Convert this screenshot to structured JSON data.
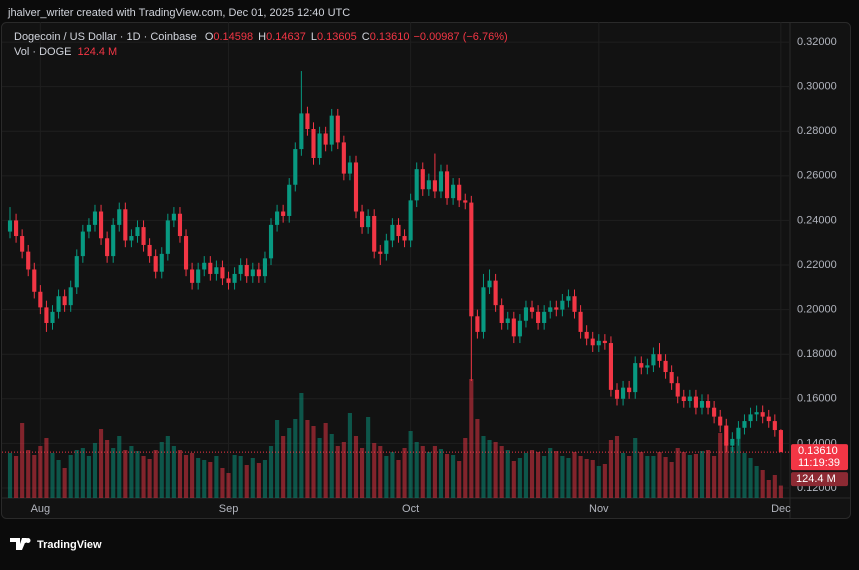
{
  "header": {
    "created_by": "jhalver_writer created with TradingView.com, Dec 01, 2025 12:40 UTC",
    "brand": "TradingView"
  },
  "chart_data": {
    "type": "candlestick",
    "title": "Dogecoin / US Dollar · 1D · Coinbase",
    "ohlc_legend": [
      {
        "key": "O",
        "label": "0.14598"
      },
      {
        "key": "H",
        "label": "0.14637"
      },
      {
        "key": "L",
        "label": "0.13605"
      },
      {
        "key": "C",
        "label": "0.13610"
      }
    ],
    "change": "−0.00987 (−6.76%)",
    "volume_title": "Vol · DOGE",
    "volume_label": "124.4 M",
    "last_price_label": "0.13610",
    "countdown": "11:19:39",
    "up_color": "#089981",
    "down_color": "#f23645",
    "grid": true,
    "open": [
      0.235,
      0.24,
      0.233,
      0.226,
      0.218,
      0.208,
      0.201,
      0.194,
      0.199,
      0.206,
      0.202,
      0.21,
      0.224,
      0.235,
      0.238,
      0.244,
      0.232,
      0.224,
      0.238,
      0.245,
      0.231,
      0.233,
      0.237,
      0.229,
      0.224,
      0.217,
      0.225,
      0.24,
      0.243,
      0.233,
      0.218,
      0.212,
      0.218,
      0.221,
      0.216,
      0.219,
      0.214,
      0.212,
      0.216,
      0.22,
      0.215,
      0.218,
      0.215,
      0.223,
      0.238,
      0.244,
      0.242,
      0.256,
      0.272,
      0.288,
      0.281,
      0.268,
      0.279,
      0.274,
      0.287,
      0.275,
      0.261,
      0.266,
      0.244,
      0.237,
      0.242,
      0.226,
      0.225,
      0.231,
      0.238,
      0.233,
      0.231,
      0.249,
      0.263,
      0.254,
      0.258,
      0.253,
      0.262,
      0.25,
      0.256,
      0.249,
      0.248,
      0.197,
      0.19,
      0.21,
      0.213,
      0.202,
      0.194,
      0.196,
      0.188,
      0.195,
      0.201,
      0.199,
      0.194,
      0.199,
      0.201,
      0.2,
      0.204,
      0.206,
      0.199,
      0.19,
      0.187,
      0.184,
      0.186,
      0.185,
      0.164,
      0.16,
      0.165,
      0.163,
      0.176,
      0.174,
      0.175,
      0.18,
      0.177,
      0.172,
      0.167,
      0.161,
      0.159,
      0.161,
      0.156,
      0.159,
      0.156,
      0.152,
      0.148,
      0.139,
      0.142,
      0.147,
      0.15,
      0.153,
      0.154,
      0.152,
      0.15,
      0.14598
    ],
    "high": [
      0.246,
      0.243,
      0.236,
      0.229,
      0.221,
      0.211,
      0.204,
      0.202,
      0.209,
      0.209,
      0.213,
      0.227,
      0.238,
      0.241,
      0.247,
      0.247,
      0.235,
      0.241,
      0.248,
      0.248,
      0.236,
      0.24,
      0.24,
      0.232,
      0.227,
      0.228,
      0.243,
      0.246,
      0.246,
      0.236,
      0.221,
      0.221,
      0.224,
      0.224,
      0.222,
      0.222,
      0.217,
      0.219,
      0.223,
      0.223,
      0.221,
      0.221,
      0.226,
      0.241,
      0.247,
      0.247,
      0.259,
      0.275,
      0.307,
      0.291,
      0.284,
      0.282,
      0.282,
      0.29,
      0.29,
      0.278,
      0.269,
      0.269,
      0.247,
      0.245,
      0.245,
      0.229,
      0.234,
      0.241,
      0.241,
      0.236,
      0.252,
      0.266,
      0.266,
      0.261,
      0.27,
      0.265,
      0.265,
      0.259,
      0.259,
      0.252,
      0.251,
      0.2,
      0.216,
      0.218,
      0.216,
      0.205,
      0.199,
      0.199,
      0.198,
      0.204,
      0.204,
      0.202,
      0.202,
      0.204,
      0.204,
      0.207,
      0.209,
      0.209,
      0.202,
      0.193,
      0.19,
      0.189,
      0.189,
      0.188,
      0.167,
      0.168,
      0.168,
      0.179,
      0.179,
      0.178,
      0.183,
      0.185,
      0.18,
      0.175,
      0.17,
      0.164,
      0.164,
      0.164,
      0.162,
      0.162,
      0.159,
      0.155,
      0.151,
      0.145,
      0.15,
      0.153,
      0.156,
      0.157,
      0.157,
      0.155,
      0.153,
      0.14637
    ],
    "low": [
      0.232,
      0.23,
      0.223,
      0.215,
      0.205,
      0.198,
      0.19,
      0.191,
      0.196,
      0.199,
      0.199,
      0.207,
      0.221,
      0.232,
      0.235,
      0.229,
      0.221,
      0.221,
      0.235,
      0.228,
      0.228,
      0.23,
      0.226,
      0.221,
      0.214,
      0.214,
      0.222,
      0.237,
      0.23,
      0.215,
      0.209,
      0.209,
      0.215,
      0.213,
      0.213,
      0.211,
      0.209,
      0.209,
      0.213,
      0.212,
      0.212,
      0.212,
      0.212,
      0.22,
      0.235,
      0.239,
      0.239,
      0.253,
      0.269,
      0.278,
      0.265,
      0.265,
      0.271,
      0.271,
      0.272,
      0.258,
      0.258,
      0.241,
      0.234,
      0.234,
      0.223,
      0.22,
      0.222,
      0.228,
      0.23,
      0.228,
      0.228,
      0.246,
      0.251,
      0.251,
      0.25,
      0.25,
      0.247,
      0.247,
      0.246,
      0.245,
      0.168,
      0.187,
      0.187,
      0.207,
      0.199,
      0.191,
      0.191,
      0.185,
      0.185,
      0.192,
      0.196,
      0.191,
      0.191,
      0.196,
      0.197,
      0.197,
      0.201,
      0.196,
      0.187,
      0.184,
      0.181,
      0.181,
      0.182,
      0.161,
      0.157,
      0.157,
      0.16,
      0.16,
      0.171,
      0.171,
      0.172,
      0.174,
      0.169,
      0.164,
      0.158,
      0.156,
      0.156,
      0.153,
      0.153,
      0.153,
      0.149,
      0.145,
      0.136,
      0.136,
      0.139,
      0.144,
      0.147,
      0.15,
      0.149,
      0.147,
      0.143,
      0.13605
    ],
    "close": [
      0.24,
      0.233,
      0.226,
      0.218,
      0.208,
      0.201,
      0.194,
      0.199,
      0.206,
      0.202,
      0.21,
      0.224,
      0.235,
      0.238,
      0.244,
      0.232,
      0.224,
      0.238,
      0.245,
      0.231,
      0.233,
      0.237,
      0.229,
      0.224,
      0.217,
      0.225,
      0.24,
      0.243,
      0.233,
      0.218,
      0.212,
      0.218,
      0.221,
      0.216,
      0.219,
      0.214,
      0.212,
      0.216,
      0.22,
      0.215,
      0.218,
      0.215,
      0.223,
      0.238,
      0.244,
      0.242,
      0.256,
      0.272,
      0.288,
      0.281,
      0.268,
      0.279,
      0.274,
      0.287,
      0.275,
      0.261,
      0.266,
      0.244,
      0.237,
      0.242,
      0.226,
      0.225,
      0.231,
      0.238,
      0.233,
      0.231,
      0.249,
      0.263,
      0.254,
      0.258,
      0.253,
      0.262,
      0.25,
      0.256,
      0.249,
      0.248,
      0.197,
      0.19,
      0.21,
      0.213,
      0.202,
      0.194,
      0.196,
      0.188,
      0.195,
      0.201,
      0.199,
      0.194,
      0.199,
      0.201,
      0.2,
      0.204,
      0.206,
      0.199,
      0.19,
      0.187,
      0.184,
      0.186,
      0.185,
      0.164,
      0.16,
      0.165,
      0.163,
      0.176,
      0.174,
      0.175,
      0.18,
      0.177,
      0.172,
      0.167,
      0.161,
      0.159,
      0.161,
      0.156,
      0.159,
      0.156,
      0.152,
      0.148,
      0.139,
      0.142,
      0.147,
      0.15,
      0.153,
      0.154,
      0.152,
      0.15,
      0.14598,
      0.1361
    ],
    "volume": [
      450,
      420,
      750,
      480,
      430,
      520,
      600,
      450,
      380,
      300,
      430,
      480,
      500,
      420,
      550,
      690,
      580,
      500,
      620,
      480,
      520,
      470,
      420,
      390,
      480,
      560,
      620,
      520,
      480,
      430,
      450,
      400,
      380,
      360,
      420,
      300,
      250,
      430,
      420,
      330,
      400,
      350,
      380,
      520,
      780,
      620,
      700,
      790,
      1050,
      780,
      720,
      600,
      750,
      640,
      520,
      560,
      850,
      620,
      500,
      810,
      550,
      520,
      420,
      460,
      380,
      500,
      670,
      560,
      520,
      460,
      520,
      490,
      440,
      430,
      370,
      600,
      1190,
      790,
      620,
      580,
      560,
      520,
      480,
      370,
      400,
      450,
      480,
      460,
      420,
      500,
      470,
      420,
      400,
      460,
      420,
      390,
      380,
      320,
      340,
      580,
      620,
      450,
      420,
      600,
      460,
      420,
      420,
      460,
      410,
      360,
      500,
      460,
      430,
      440,
      470,
      480,
      420,
      650,
      560,
      510,
      590,
      450,
      400,
      320,
      280,
      180,
      230,
      124.4
    ],
    "volume_lim": [
      0,
      4760
    ],
    "xlim": [
      -0.33,
      128.5
    ],
    "xticks": [
      {
        "value": 5,
        "label": "Aug"
      },
      {
        "value": 36,
        "label": "Sep"
      },
      {
        "value": 66,
        "label": "Oct"
      },
      {
        "value": 97,
        "label": "Nov"
      },
      {
        "value": 127,
        "label": "Dec"
      }
    ],
    "ylim": [
      0.1155,
      0.329
    ],
    "yticks": [
      {
        "value": 0.12,
        "label": "0.12000"
      },
      {
        "value": 0.14,
        "label": "0.14000"
      },
      {
        "value": 0.16,
        "label": "0.16000"
      },
      {
        "value": 0.18,
        "label": "0.18000"
      },
      {
        "value": 0.2,
        "label": "0.20000"
      },
      {
        "value": 0.22,
        "label": "0.22000"
      },
      {
        "value": 0.24,
        "label": "0.24000"
      },
      {
        "value": 0.26,
        "label": "0.26000"
      },
      {
        "value": 0.28,
        "label": "0.28000"
      },
      {
        "value": 0.3,
        "label": "0.30000"
      },
      {
        "value": 0.32,
        "label": "0.32000"
      }
    ]
  }
}
